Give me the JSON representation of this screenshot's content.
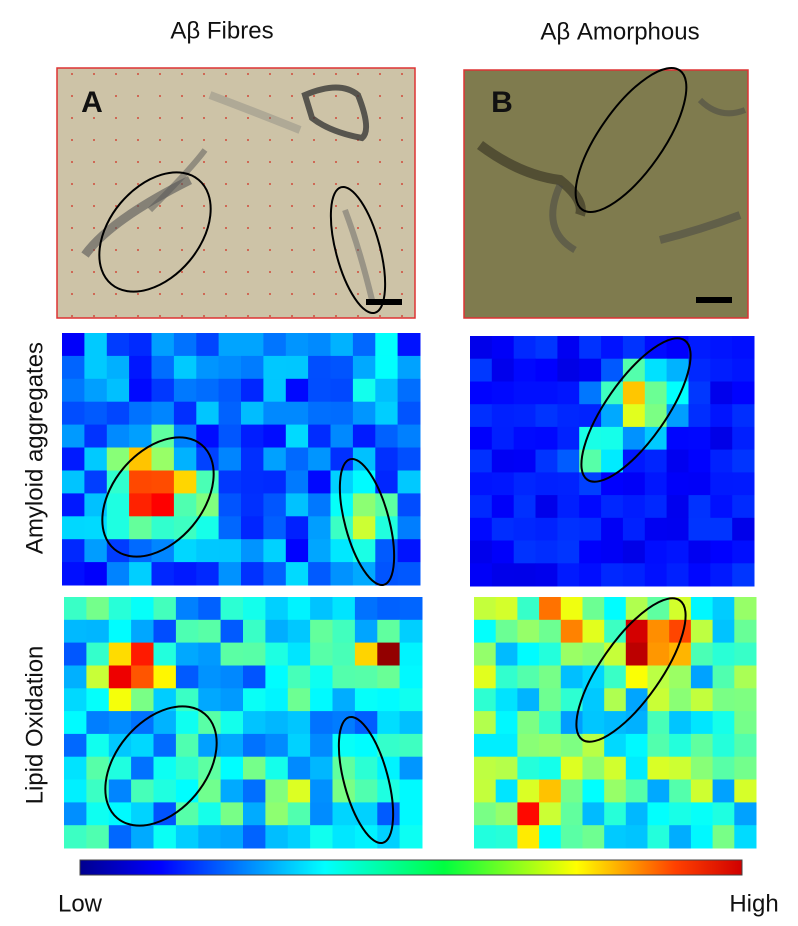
{
  "columns": [
    "Aβ Fibres",
    "Aβ Amorphous"
  ],
  "panels": [
    "A",
    "B"
  ],
  "rows": [
    "Amyloid aggregates",
    "Lipid Oxidation"
  ],
  "colorbar": {
    "low": "Low",
    "high": "High"
  }
}
